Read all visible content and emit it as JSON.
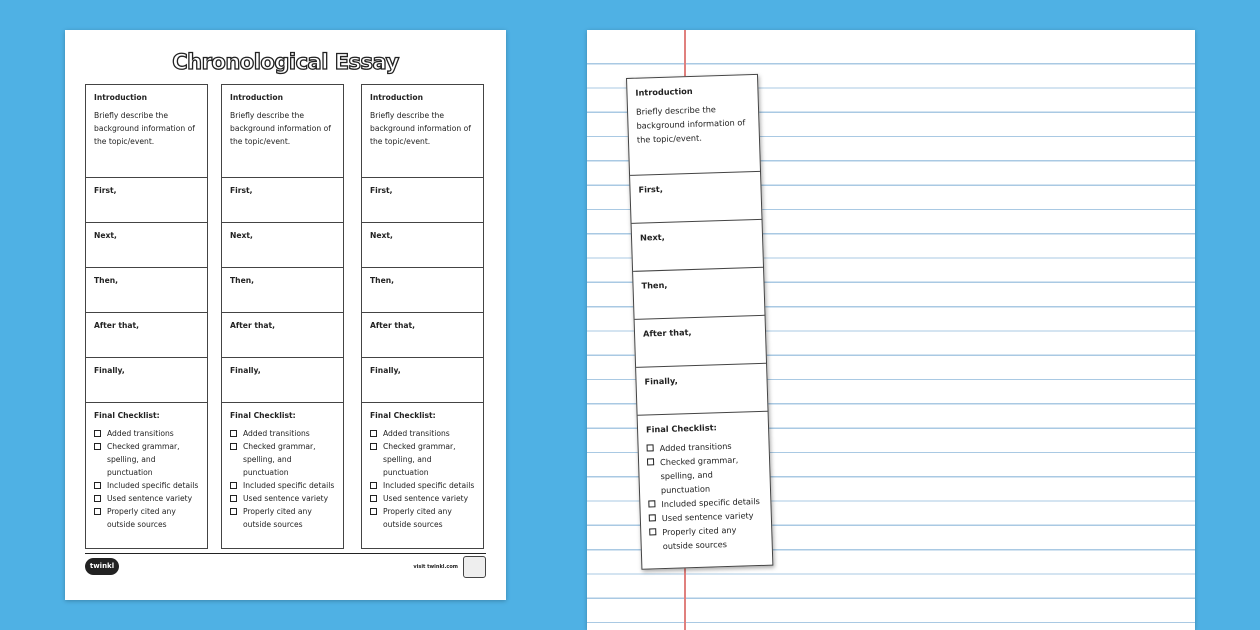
{
  "worksheet": {
    "title": "Chronological Essay",
    "intro_heading": "Introduction",
    "intro_text": "Briefly describe the background information of the topic/event.",
    "prompts": [
      "First,",
      "Next,",
      "Then,",
      "After that,",
      "Finally,"
    ],
    "checklist_heading": "Final Checklist:",
    "checklist": [
      "Added transitions",
      "Checked grammar, spelling, and punctuation",
      "Included specific details",
      "Used sentence variety",
      "Properly cited any outside sources"
    ],
    "footer_logo": "twinkl",
    "footer_url": "visit twinkl.com"
  },
  "colors": {
    "background": "#4fb1e4",
    "notebook_margin": "#e0807e",
    "notebook_lines": "#a9c9e3"
  }
}
